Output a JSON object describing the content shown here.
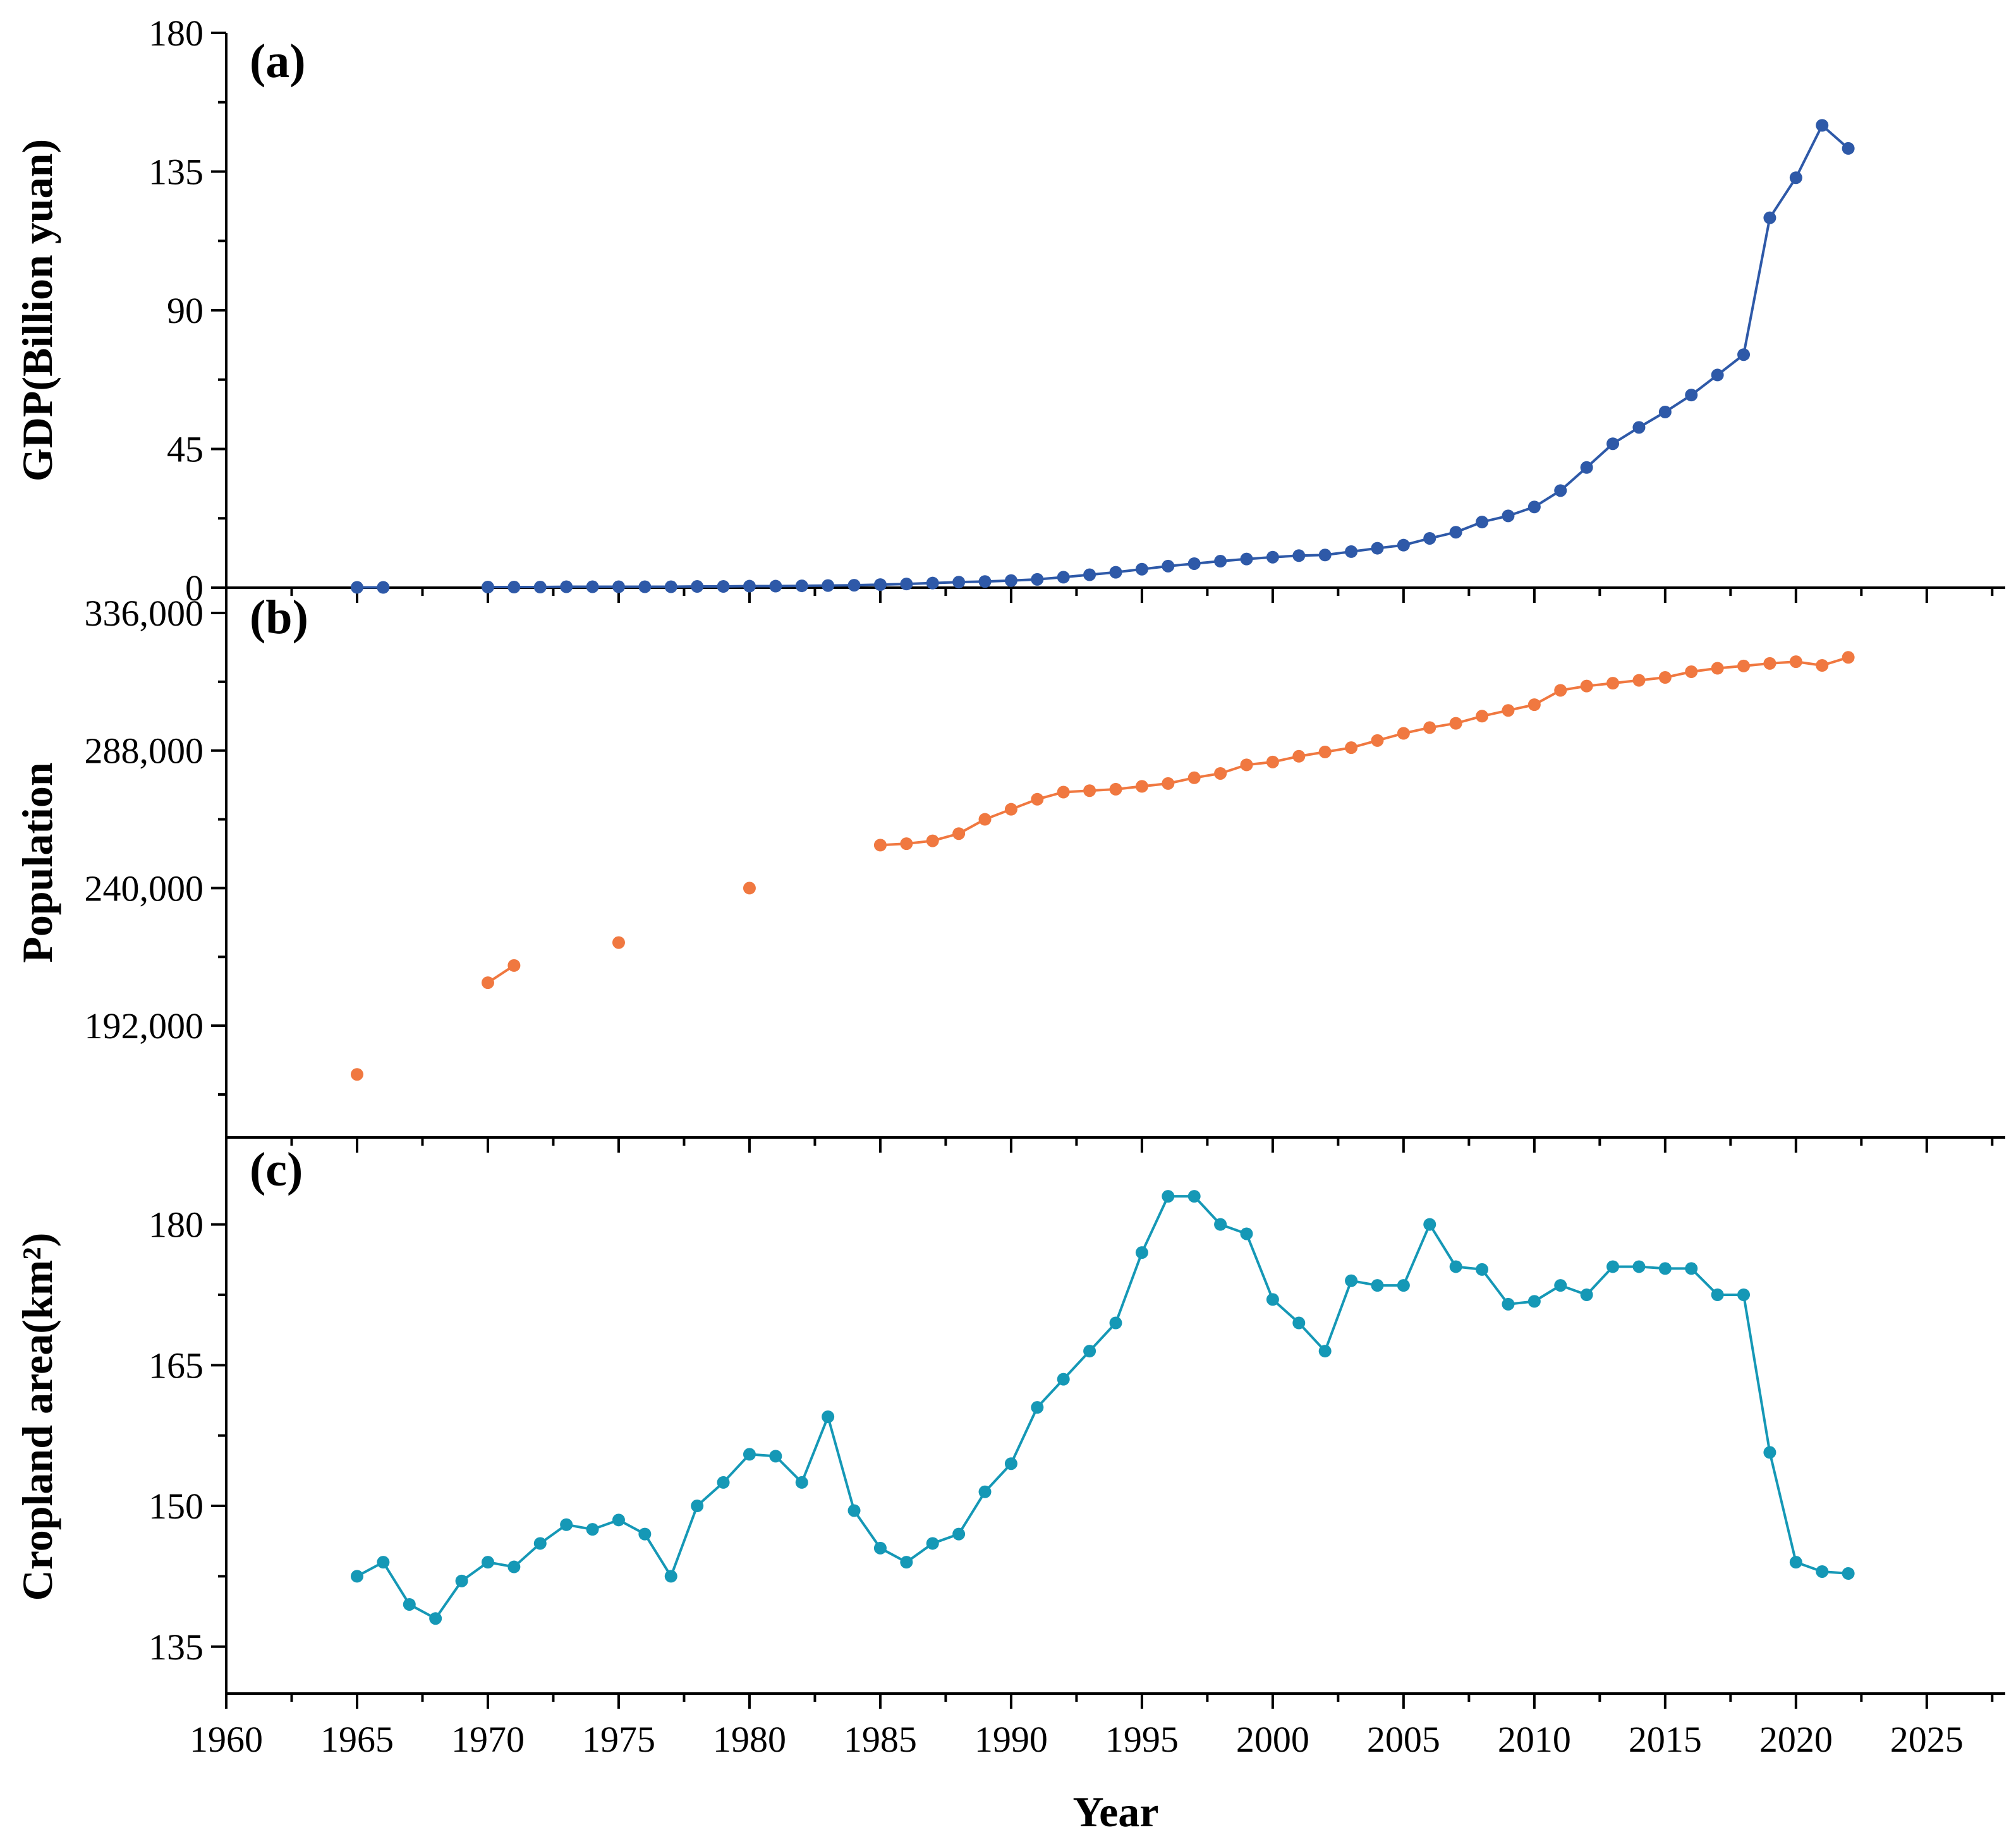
{
  "chart_data": [
    {
      "type": "line",
      "panel_label": "(a)",
      "ylabel": "GDP(Billion yuan)",
      "ylim": [
        0,
        180
      ],
      "yticks": [
        "0",
        "45",
        "90",
        "135",
        "180"
      ],
      "color": "#2e59a8",
      "series": [
        {
          "x": [
            1965,
            1966,
            1970,
            1971,
            1972,
            1973,
            1974,
            1975,
            1976,
            1977,
            1978,
            1979,
            1980,
            1981,
            1982,
            1983,
            1984,
            1985,
            1986,
            1987,
            1988,
            1989,
            1990,
            1991,
            1992,
            1993,
            1994,
            1995,
            1996,
            1997,
            1998,
            1999,
            2000,
            2001,
            2002,
            2003,
            2004,
            2005,
            2006,
            2007,
            2008,
            2009,
            2010,
            2011,
            2012,
            2013,
            2014,
            2015,
            2016,
            2017,
            2018,
            2019,
            2020,
            2021,
            2022
          ],
          "values": [
            0.1,
            0.1,
            0.2,
            0.2,
            0.2,
            0.3,
            0.3,
            0.3,
            0.3,
            0.3,
            0.4,
            0.4,
            0.5,
            0.5,
            0.6,
            0.7,
            0.8,
            1.0,
            1.2,
            1.5,
            1.8,
            2.0,
            2.3,
            2.7,
            3.4,
            4.2,
            5.0,
            6.0,
            7.0,
            7.8,
            8.6,
            9.3,
            9.9,
            10.4,
            10.6,
            11.7,
            12.8,
            13.8,
            16.0,
            18.0,
            21.3,
            23.3,
            26.2,
            31.5,
            39.0,
            46.7,
            52.0,
            57.0,
            62.5,
            69.0,
            75.6,
            120.0,
            133.0,
            150.0,
            142.5
          ]
        }
      ]
    },
    {
      "type": "line",
      "panel_label": "(b)",
      "ylabel": "Population",
      "ylim": [
        153000,
        336000
      ],
      "yticks": [
        "192,000",
        "240,000",
        "288,000",
        "336,000"
      ],
      "color": "#f07840",
      "series": [
        {
          "x": [
            1965,
            1970,
            1971,
            1975,
            1980,
            1985,
            1986,
            1987,
            1988,
            1989,
            1990,
            1991,
            1992,
            1993,
            1994,
            1995,
            1996,
            1997,
            1998,
            1999,
            2000,
            2001,
            2002,
            2003,
            2004,
            2005,
            2006,
            2007,
            2008,
            2009,
            2010,
            2011,
            2012,
            2013,
            2014,
            2015,
            2016,
            2017,
            2018,
            2019,
            2020,
            2021,
            2022
          ],
          "values": [
            175000,
            207000,
            213000,
            221000,
            240000,
            255000,
            255500,
            256500,
            259000,
            264000,
            267500,
            271000,
            273500,
            274000,
            274500,
            275500,
            276500,
            278500,
            280000,
            283000,
            284000,
            286000,
            287500,
            289000,
            291500,
            294000,
            296000,
            297500,
            300000,
            302000,
            304000,
            309000,
            310500,
            311500,
            312500,
            313500,
            315500,
            316700,
            317500,
            318400,
            319000,
            317700,
            320500
          ]
        }
      ]
    },
    {
      "type": "line",
      "panel_label": "(c)",
      "ylabel": "Cropland area(km²)",
      "ylim": [
        130,
        189
      ],
      "yticks": [
        "135",
        "150",
        "165",
        "180"
      ],
      "color": "#1598b6",
      "series": [
        {
          "x": [
            1965,
            1966,
            1967,
            1968,
            1969,
            1970,
            1971,
            1972,
            1973,
            1974,
            1975,
            1976,
            1977,
            1978,
            1979,
            1980,
            1981,
            1982,
            1983,
            1984,
            1985,
            1986,
            1987,
            1988,
            1989,
            1990,
            1991,
            1992,
            1993,
            1994,
            1995,
            1996,
            1997,
            1998,
            1999,
            2000,
            2001,
            2002,
            2003,
            2004,
            2005,
            2006,
            2007,
            2008,
            2009,
            2010,
            2011,
            2012,
            2013,
            2014,
            2015,
            2016,
            2017,
            2018,
            2019,
            2020,
            2021,
            2022
          ],
          "values": [
            142.5,
            144,
            139.5,
            138,
            142,
            144,
            143.5,
            146,
            148,
            147.5,
            148.5,
            147,
            142.5,
            150,
            152.5,
            155.5,
            155.3,
            152.5,
            159.5,
            149.5,
            145.5,
            144,
            146,
            147,
            151.5,
            154.5,
            160.5,
            163.5,
            166.5,
            169.5,
            177,
            183,
            183,
            180,
            179,
            172,
            169.5,
            166.5,
            174,
            173.5,
            173.5,
            180,
            175.5,
            175.2,
            171.5,
            171.8,
            173.5,
            172.5,
            175.5,
            175.5,
            175.3,
            175.3,
            172.5,
            172.5,
            155.7,
            144,
            143,
            142.8
          ]
        }
      ]
    }
  ],
  "x_axis": {
    "label": "Year",
    "xlim": [
      1960,
      2028
    ],
    "ticks": [
      "1960",
      "1965",
      "1970",
      "1975",
      "1980",
      "1985",
      "1990",
      "1995",
      "2000",
      "2005",
      "2010",
      "2015",
      "2020",
      "2025"
    ]
  }
}
